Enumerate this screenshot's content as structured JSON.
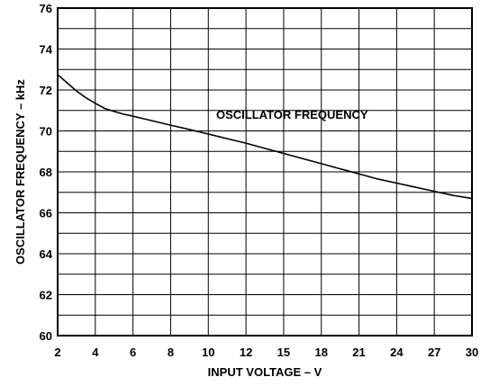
{
  "chart_data": {
    "type": "line",
    "xlabel": "INPUT VOLTAGE – V",
    "ylabel": "OSCILLATOR FREQUENCY – kHz",
    "x_ticks": [
      "2",
      "4",
      "6",
      "8",
      "10",
      "12",
      "15",
      "18",
      "21",
      "24",
      "27",
      "30"
    ],
    "y_ticks": [
      "60",
      "62",
      "64",
      "66",
      "68",
      "70",
      "72",
      "74",
      "76"
    ],
    "ylim": [
      60,
      76
    ],
    "grid": true,
    "annotation": "OSCILLATOR FREQUENCY",
    "series": [
      {
        "x": [
          2,
          2.5,
          3,
          3.5,
          4,
          4.5,
          5,
          5.5,
          6,
          7,
          8,
          9,
          10,
          11,
          12,
          13.5,
          15,
          16.5,
          18,
          19.5,
          21,
          22.5,
          24,
          25.5,
          27,
          28.5,
          30
        ],
        "y": [
          72.75,
          72.35,
          71.95,
          71.62,
          71.35,
          71.1,
          70.95,
          70.82,
          70.72,
          70.5,
          70.28,
          70.07,
          69.85,
          69.62,
          69.4,
          69.15,
          68.9,
          68.65,
          68.4,
          68.15,
          67.9,
          67.65,
          67.45,
          67.25,
          67.05,
          66.85,
          66.7
        ]
      }
    ]
  }
}
